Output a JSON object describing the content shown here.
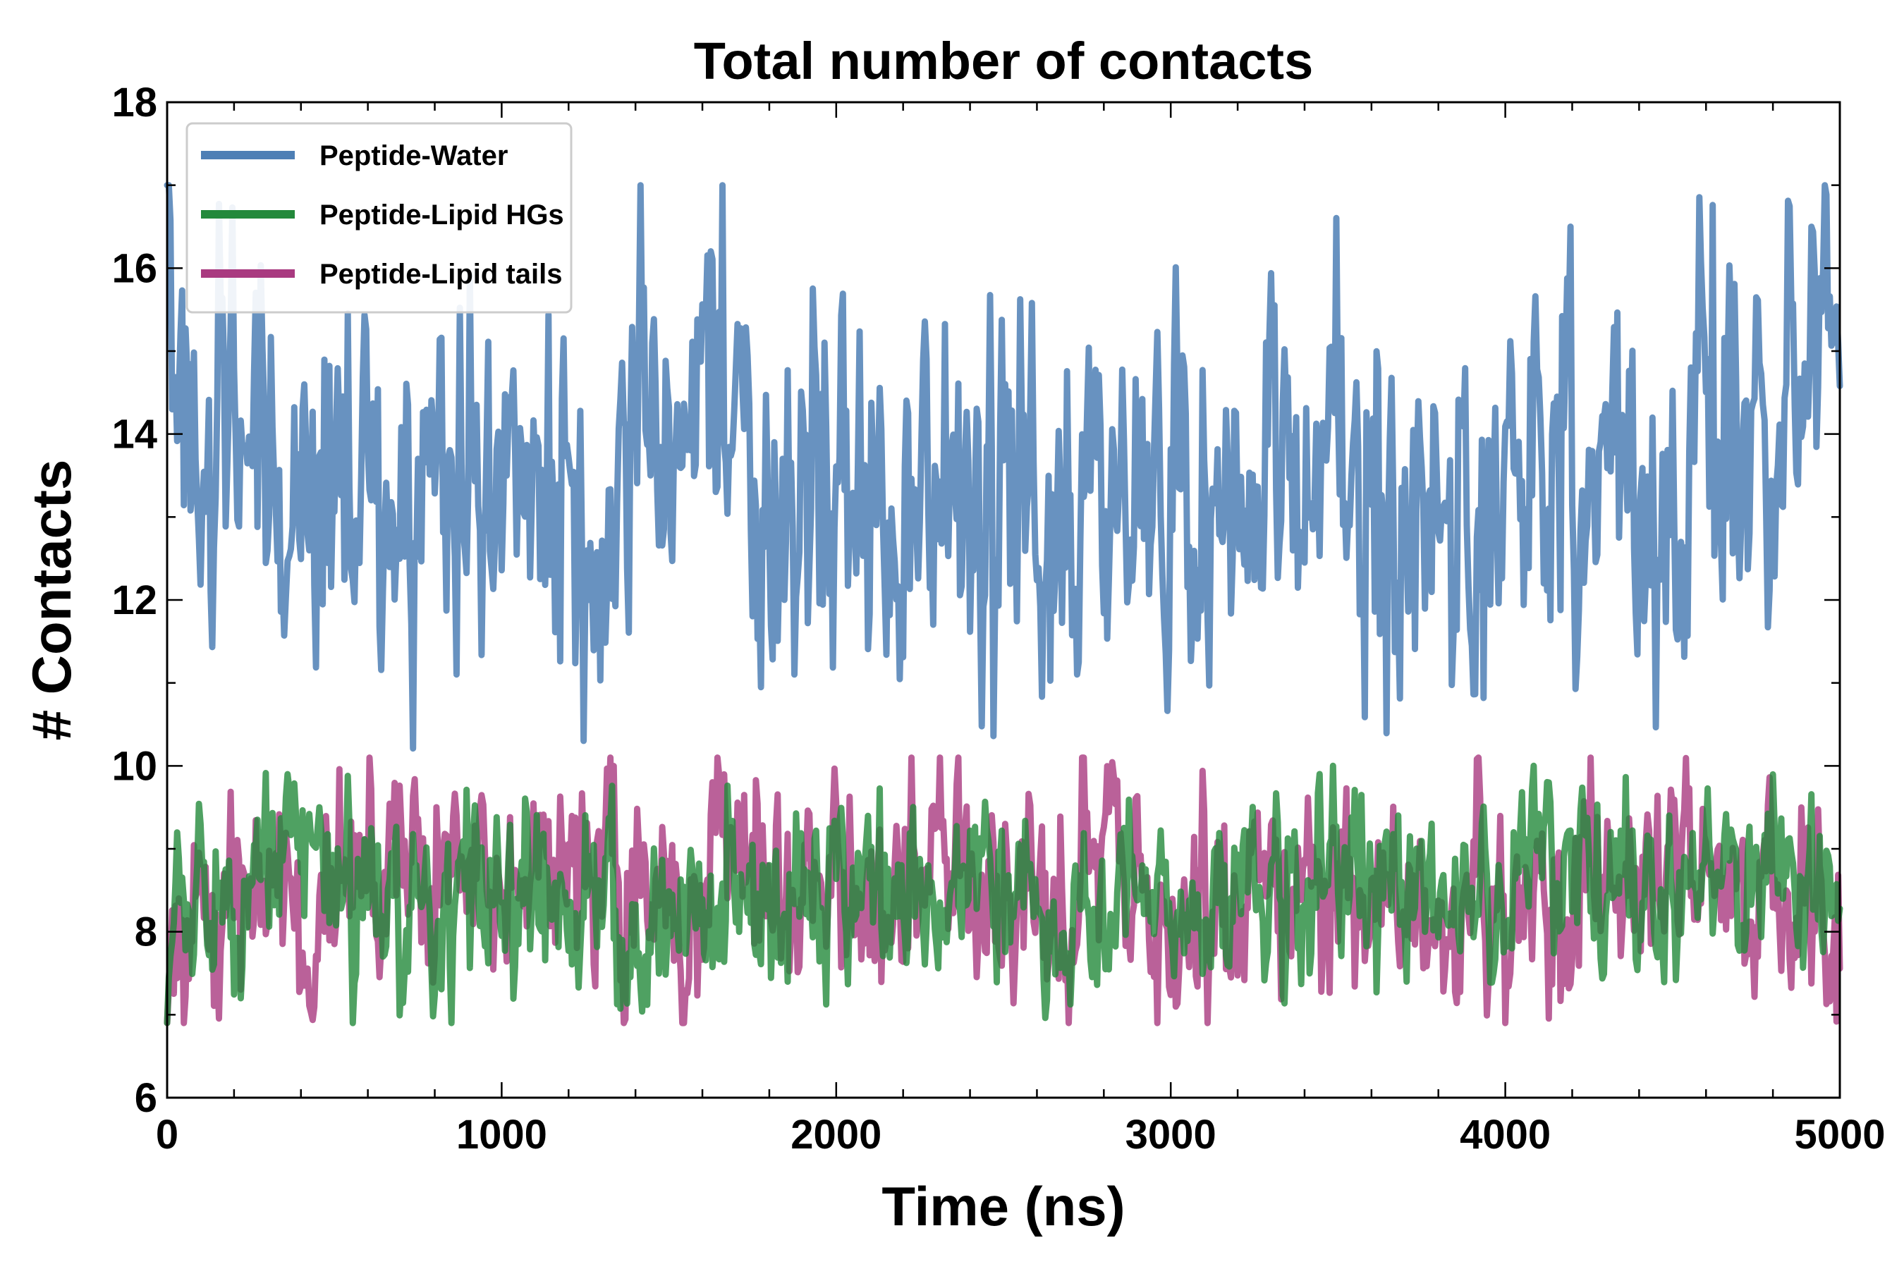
{
  "chart_data": {
    "type": "line",
    "title": "Total number of contacts",
    "xlabel": "Time (ns)",
    "ylabel": "# Contacts",
    "xlim": [
      0,
      5000
    ],
    "ylim": [
      6,
      18
    ],
    "xticks": [
      0,
      1000,
      2000,
      3000,
      4000,
      5000
    ],
    "xtick_labels": [
      "0",
      "1000",
      "2000",
      "3000",
      "4000",
      "5000"
    ],
    "yticks": [
      6,
      8,
      10,
      12,
      14,
      16,
      18
    ],
    "ytick_labels": [
      "6",
      "8",
      "10",
      "12",
      "14",
      "16",
      "18"
    ],
    "grid": false,
    "legend_position": "top-left",
    "sample_interval_ns": 100,
    "series": [
      {
        "name": "Peptide-Water",
        "color": "#4e7fb5",
        "x": [
          0,
          100,
          200,
          300,
          400,
          500,
          600,
          700,
          800,
          900,
          1000,
          1100,
          1200,
          1300,
          1400,
          1500,
          1600,
          1700,
          1800,
          1900,
          2000,
          2100,
          2200,
          2300,
          2400,
          2500,
          2600,
          2700,
          2800,
          2900,
          3000,
          3100,
          3200,
          3300,
          3400,
          3500,
          3600,
          3700,
          3800,
          3900,
          4000,
          4100,
          4200,
          4300,
          4400,
          4500,
          4600,
          4700,
          4800,
          4900,
          5000
        ],
        "values": [
          15.5,
          13.9,
          13.8,
          13.5,
          13.4,
          13.4,
          13.1,
          13.7,
          13.3,
          13.2,
          13.6,
          13.3,
          12.9,
          12.3,
          13.9,
          13.8,
          15.2,
          14.2,
          12.8,
          13.7,
          13.4,
          13.6,
          13.1,
          13.1,
          12.9,
          13.2,
          13.3,
          12.8,
          13.1,
          12.8,
          12.8,
          13.3,
          14.5,
          13.7,
          13.0,
          14.4,
          13.2,
          12.9,
          14.1,
          12.3,
          13.9,
          13.6,
          13.5,
          14.8,
          12.6,
          12.8,
          14.1,
          14.0,
          13.8,
          14.2,
          15.2
        ]
      },
      {
        "name": "Peptide-Lipid HGs",
        "color": "#23893b",
        "x": [
          0,
          100,
          200,
          300,
          400,
          500,
          600,
          700,
          800,
          900,
          1000,
          1100,
          1200,
          1300,
          1400,
          1500,
          1600,
          1700,
          1800,
          1900,
          2000,
          2100,
          2200,
          2300,
          2400,
          2500,
          2600,
          2700,
          2800,
          2900,
          3000,
          3100,
          3200,
          3300,
          3400,
          3500,
          3600,
          3700,
          3800,
          3900,
          4000,
          4100,
          4200,
          4300,
          4400,
          4500,
          4600,
          4700,
          4800,
          4900,
          5000
        ],
        "values": [
          8.3,
          8.6,
          8.2,
          8.8,
          9.2,
          8.9,
          8.4,
          8.4,
          8.2,
          8.7,
          8.4,
          8.6,
          8.4,
          8.6,
          8.0,
          8.1,
          8.4,
          8.5,
          7.9,
          8.4,
          8.6,
          8.4,
          8.4,
          8.5,
          8.6,
          8.9,
          8.4,
          7.9,
          8.3,
          8.5,
          8.1,
          8.5,
          8.1,
          8.3,
          8.3,
          8.6,
          8.4,
          8.5,
          8.3,
          8.6,
          8.2,
          9.2,
          8.5,
          8.8,
          8.2,
          8.4,
          8.9,
          8.2,
          8.8,
          8.2,
          8.5
        ]
      },
      {
        "name": "Peptide-Lipid tails",
        "color": "#a93a80",
        "x": [
          0,
          100,
          200,
          300,
          400,
          500,
          600,
          700,
          800,
          900,
          1000,
          1100,
          1200,
          1300,
          1400,
          1500,
          1600,
          1700,
          1800,
          1900,
          2000,
          2100,
          2200,
          2300,
          2400,
          2500,
          2600,
          2700,
          2800,
          2900,
          3000,
          3100,
          3200,
          3300,
          3400,
          3500,
          3600,
          3700,
          3800,
          3900,
          4000,
          4100,
          4200,
          4300,
          4400,
          4500,
          4600,
          4700,
          4800,
          4900,
          5000
        ],
        "values": [
          7.0,
          8.2,
          8.4,
          8.7,
          7.9,
          8.8,
          8.4,
          8.3,
          8.6,
          8.7,
          8.7,
          8.8,
          8.8,
          8.9,
          8.8,
          8.2,
          8.2,
          9.2,
          8.2,
          8.4,
          8.7,
          8.5,
          8.8,
          8.8,
          8.7,
          8.1,
          8.4,
          8.1,
          9.1,
          8.5,
          8.1,
          8.3,
          8.7,
          8.4,
          8.5,
          8.4,
          8.5,
          8.6,
          8.1,
          8.5,
          8.2,
          8.5,
          8.6,
          8.3,
          8.4,
          8.7,
          9.1,
          8.4,
          8.3,
          8.2,
          7.7
        ]
      }
    ]
  }
}
